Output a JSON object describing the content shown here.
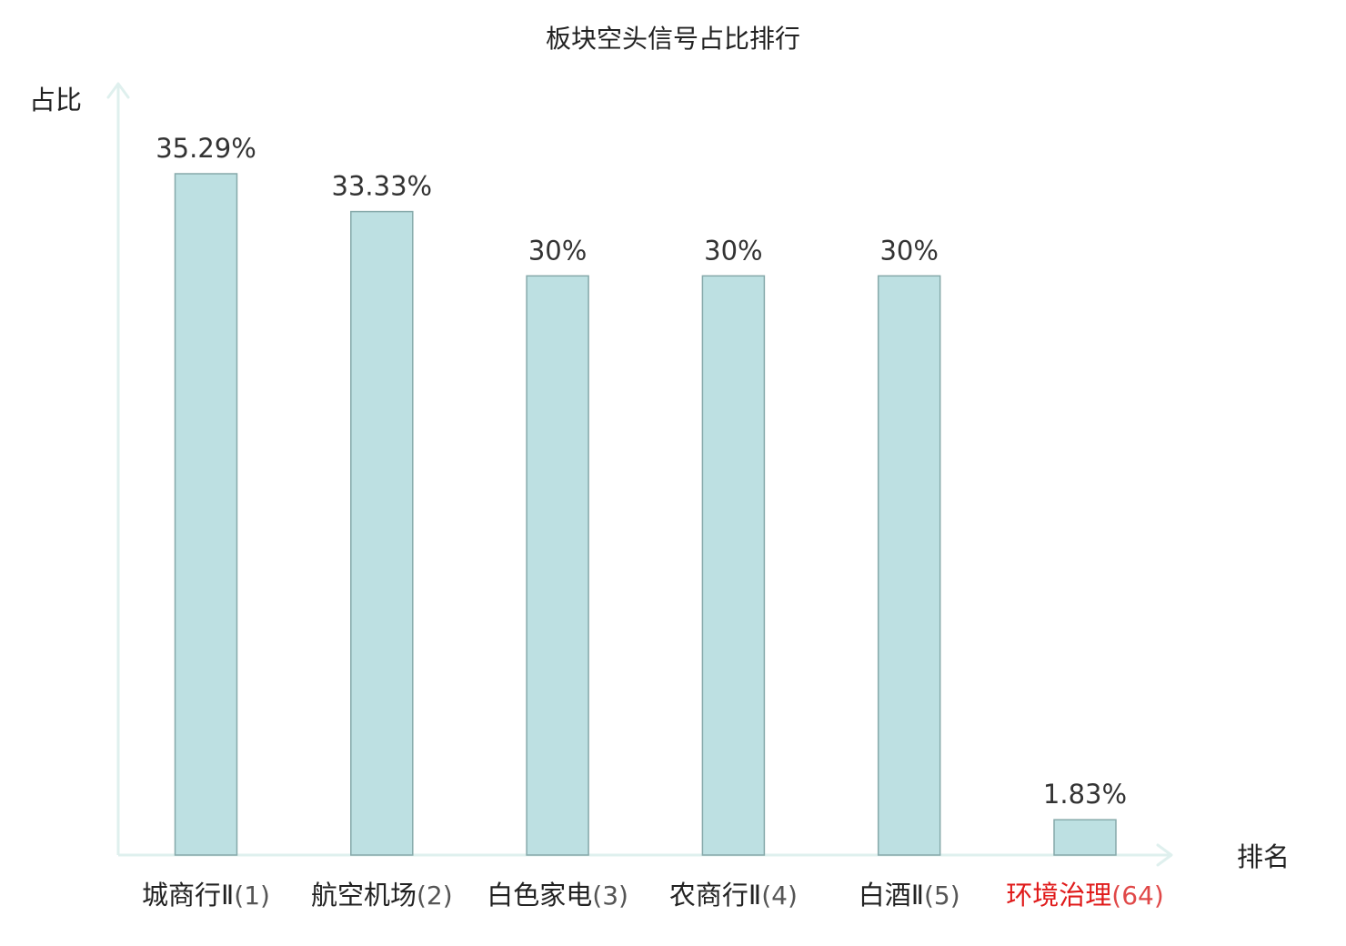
{
  "chart_data": {
    "type": "bar",
    "title": "板块空头信号占比排行",
    "ylabel": "占比",
    "xlabel": "排名",
    "ylim": [
      0,
      40
    ],
    "grid": false,
    "categories": [
      {
        "name": "城商行Ⅱ",
        "rank": "(1)"
      },
      {
        "name": "航空机场",
        "rank": "(2)"
      },
      {
        "name": "白色家电",
        "rank": "(3)"
      },
      {
        "name": "农商行Ⅱ",
        "rank": "(4)"
      },
      {
        "name": "白酒Ⅱ",
        "rank": "(5)"
      },
      {
        "name": "环境治理",
        "rank": "(64)"
      }
    ],
    "values": [
      35.29,
      33.33,
      30,
      30,
      30,
      1.83
    ],
    "value_labels": [
      "35.29%",
      "33.33%",
      "30%",
      "30%",
      "30%",
      "1.83%"
    ],
    "highlight_index": 5
  },
  "colors": {
    "bar_fill": "#bde0e2",
    "bar_stroke": "#86a9aa",
    "axis": "#dff0ee",
    "text": "#222222",
    "value_text": "#333333",
    "rank_text": "#555555",
    "highlight": "#e01b1b",
    "highlight_rank": "#e04848"
  }
}
